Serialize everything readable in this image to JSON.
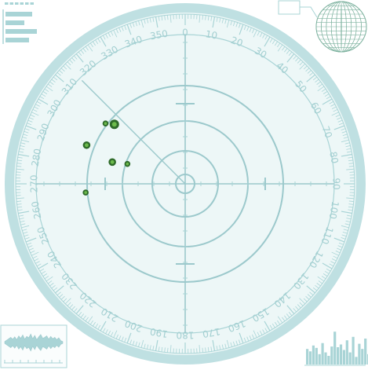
{
  "colors": {
    "line": "#a9d4d6",
    "line_strong": "#9cc9cc",
    "face": "#edf7f7",
    "bezel": "#bfe0e2",
    "label": "#a3cfd1",
    "blip_outer": "#2f6b2a",
    "blip_inner": "#6dbb4c",
    "globe": "#7fb3a0"
  },
  "dial": {
    "bearing_labels": [
      "0",
      "10",
      "20",
      "30",
      "40",
      "50",
      "60",
      "70",
      "80",
      "90",
      "100",
      "110",
      "120",
      "130",
      "140",
      "150",
      "160",
      "170",
      "180",
      "190",
      "200",
      "210",
      "220",
      "230",
      "240",
      "250",
      "260",
      "270",
      "280",
      "290",
      "300",
      "310",
      "320",
      "330",
      "340",
      "350"
    ],
    "sweep_bearing_deg": 315
  },
  "blips": [
    {
      "id": "b1",
      "bearing_deg": 307.1,
      "range": 0.67,
      "size": "small"
    },
    {
      "id": "b2",
      "bearing_deg": 310.0,
      "range": 0.62,
      "size": "large"
    },
    {
      "id": "b3",
      "bearing_deg": 291.4,
      "range": 0.71,
      "size": "medium"
    },
    {
      "id": "b4",
      "bearing_deg": 286.6,
      "range": 0.51,
      "size": "medium"
    },
    {
      "id": "b5",
      "bearing_deg": 289.0,
      "range": 0.41,
      "size": "small"
    },
    {
      "id": "b6",
      "bearing_deg": 265.0,
      "range": 0.67,
      "size": "small"
    }
  ],
  "equalizer_levels": [
    0.45,
    0.38,
    0.55,
    0.48,
    0.3,
    0.62,
    0.35,
    0.25,
    0.52,
    0.95,
    0.5,
    0.58,
    0.42,
    0.7,
    0.35,
    0.8,
    0.22,
    0.6,
    0.45,
    0.75,
    0.3,
    0.48,
    0.4,
    0.65
  ],
  "waveform_levels": [
    0.1,
    0.25,
    0.4,
    0.55,
    0.35,
    0.6,
    0.3,
    0.7,
    0.45,
    0.8,
    0.35,
    0.65,
    0.5,
    0.9,
    0.4,
    0.75,
    0.3,
    0.6,
    0.85,
    0.45,
    0.55,
    0.7,
    0.35,
    0.65,
    0.4,
    0.55,
    0.3,
    0.5,
    0.2,
    0.1
  ]
}
